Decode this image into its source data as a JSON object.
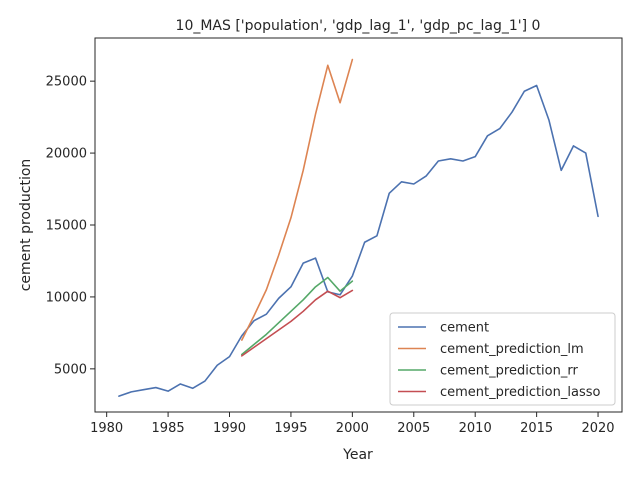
{
  "chart_data": {
    "type": "line",
    "title": "10_MAS ['population', 'gdp_lag_1', 'gdp_pc_lag_1'] 0",
    "xlabel": "Year",
    "ylabel": "cement production",
    "xlim": [
      1979.05,
      2021.95
    ],
    "ylim": [
      2000,
      28000
    ],
    "xticks": [
      1980,
      1985,
      1990,
      1995,
      2000,
      2005,
      2010,
      2015,
      2020
    ],
    "yticks": [
      5000,
      10000,
      15000,
      20000,
      25000
    ],
    "grid": false,
    "legend_position": "lower right",
    "series": [
      {
        "name": "cement",
        "color": "#4c72b0",
        "x": [
          1981,
          1982,
          1983,
          1984,
          1985,
          1986,
          1987,
          1988,
          1989,
          1990,
          1991,
          1992,
          1993,
          1994,
          1995,
          1996,
          1997,
          1998,
          1999,
          2000,
          2001,
          2002,
          2003,
          2004,
          2005,
          2006,
          2007,
          2008,
          2009,
          2010,
          2011,
          2012,
          2013,
          2014,
          2015,
          2016,
          2017,
          2018,
          2019,
          2020
        ],
        "y": [
          3100,
          3400,
          3550,
          3700,
          3450,
          3950,
          3650,
          4150,
          5250,
          5850,
          7300,
          8350,
          8800,
          9900,
          10700,
          12350,
          12700,
          10350,
          10150,
          11450,
          13800,
          14250,
          17200,
          18000,
          17850,
          18400,
          19450,
          19600,
          19450,
          19750,
          21200,
          21700,
          22850,
          24300,
          24700,
          22300,
          18800,
          20500,
          20000,
          15600
        ]
      },
      {
        "name": "cement_prediction_lm",
        "color": "#dd8452",
        "x": [
          1991,
          1992,
          1993,
          1994,
          1995,
          1996,
          1997,
          1998,
          1999,
          2000
        ],
        "y": [
          7000,
          8700,
          10500,
          12900,
          15500,
          18800,
          22700,
          26100,
          23500,
          26500
        ]
      },
      {
        "name": "cement_prediction_rr",
        "color": "#55a868",
        "x": [
          1991,
          1992,
          1993,
          1994,
          1995,
          1996,
          1997,
          1998,
          1999,
          2000
        ],
        "y": [
          6000,
          6700,
          7400,
          8200,
          9000,
          9800,
          10700,
          11350,
          10400,
          11100
        ]
      },
      {
        "name": "cement_prediction_lasso",
        "color": "#c44e52",
        "x": [
          1991,
          1992,
          1993,
          1994,
          1995,
          1996,
          1997,
          1998,
          1999,
          2000
        ],
        "y": [
          5900,
          6500,
          7100,
          7700,
          8300,
          9000,
          9800,
          10400,
          9950,
          10450
        ]
      }
    ]
  }
}
